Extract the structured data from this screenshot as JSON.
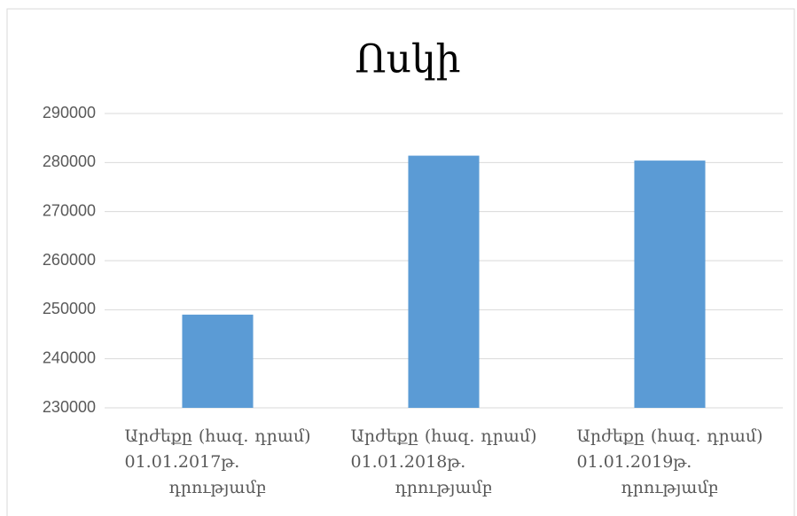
{
  "chart_data": {
    "type": "bar",
    "title": "Ոսկի",
    "categories": [
      "Արժեքը (հազ. դրամ) 01.01.2017թ. դրությամբ",
      "Արժեքը (հազ. դրամ) 01.01.2018թ. դրությամբ",
      "Արժեքը (հազ. դրամ) 01.01.2019թ. դրությամբ"
    ],
    "values": [
      249000,
      281400,
      280400
    ],
    "color": "#5b9bd5",
    "ylim": [
      230000,
      290000
    ],
    "yticks": [
      230000,
      240000,
      250000,
      260000,
      270000,
      280000,
      290000
    ],
    "grid": true
  }
}
